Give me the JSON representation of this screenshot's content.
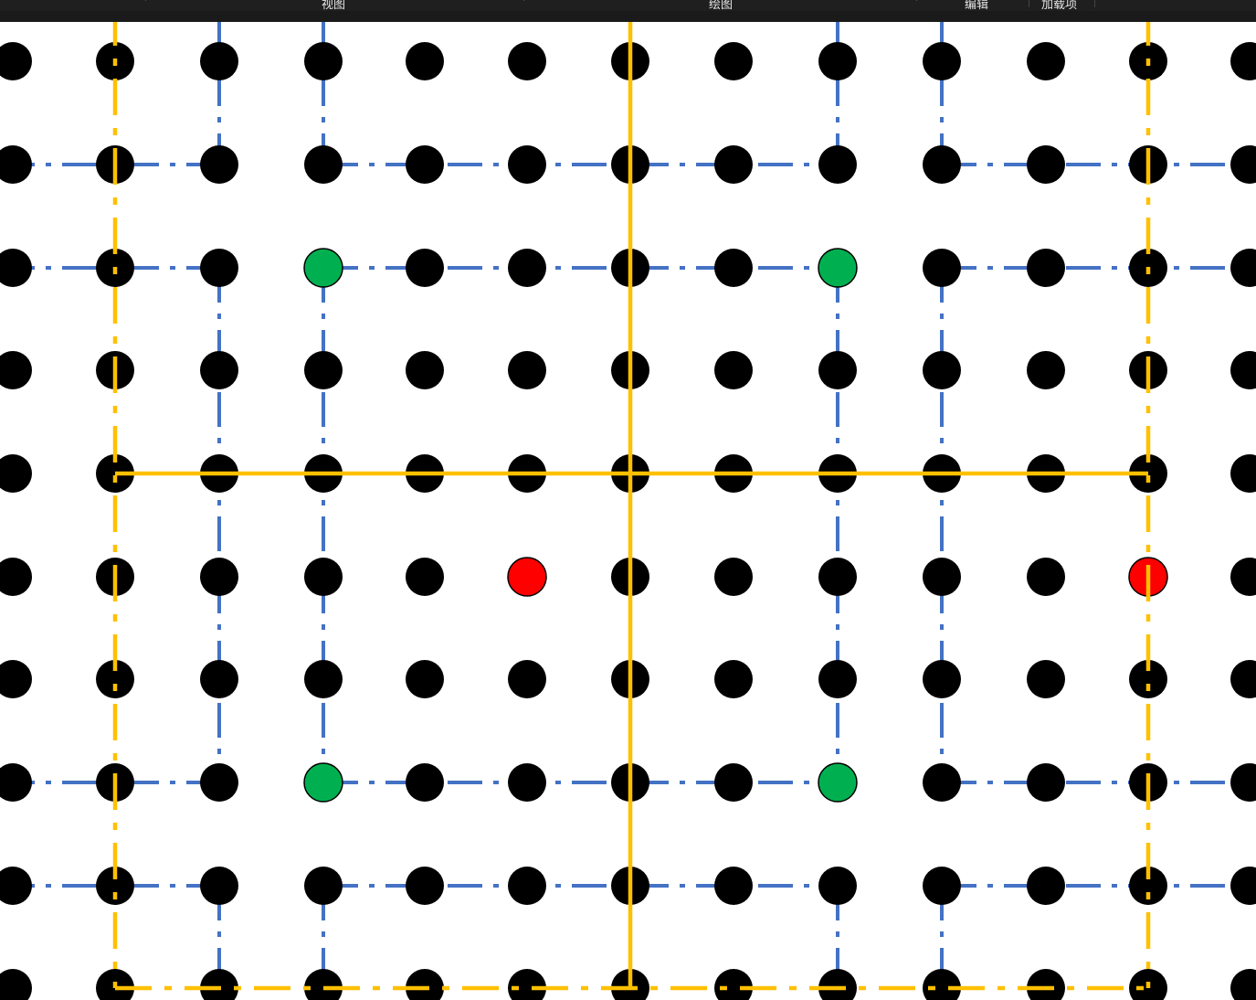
{
  "toolbar": {
    "labels": [
      "视图",
      "绘图",
      "编辑",
      "加载项"
    ]
  },
  "colors": {
    "background": "#ffffff",
    "dot": "#000000",
    "green_dot": "#00b050",
    "red_dot": "#ff0000",
    "blue_dash": "#4472c4",
    "orange_line": "#ffc000",
    "toolbar_bg": "#1f1f1f"
  },
  "grid": {
    "columns": 13,
    "rows": 10
  },
  "special_dots": {
    "green": [
      [
        3,
        2
      ],
      [
        8,
        2
      ],
      [
        3,
        7
      ],
      [
        8,
        7
      ]
    ],
    "red": [
      [
        5,
        5
      ],
      [
        11,
        5
      ]
    ]
  },
  "blue_dash_lines": {
    "horizontal": [
      {
        "row": 1,
        "from": 0,
        "to": 2
      },
      {
        "row": 1,
        "from": 3,
        "to": 8
      },
      {
        "row": 1,
        "from": 9,
        "to": 12
      },
      {
        "row": 2,
        "from": 0,
        "to": 2
      },
      {
        "row": 2,
        "from": 3,
        "to": 8
      },
      {
        "row": 2,
        "from": 9,
        "to": 12
      },
      {
        "row": 7,
        "from": 0,
        "to": 2
      },
      {
        "row": 7,
        "from": 3,
        "to": 8
      },
      {
        "row": 7,
        "from": 9,
        "to": 12
      },
      {
        "row": 8,
        "from": 0,
        "to": 2
      },
      {
        "row": 8,
        "from": 3,
        "to": 8
      },
      {
        "row": 8,
        "from": 9,
        "to": 12
      }
    ],
    "vertical": [
      {
        "col": 2,
        "from": -1,
        "to": 1
      },
      {
        "col": 3,
        "from": -1,
        "to": 1
      },
      {
        "col": 8,
        "from": -1,
        "to": 1
      },
      {
        "col": 9,
        "from": -1,
        "to": 1
      },
      {
        "col": 2,
        "from": 2,
        "to": 7
      },
      {
        "col": 3,
        "from": 2,
        "to": 7
      },
      {
        "col": 8,
        "from": 2,
        "to": 7
      },
      {
        "col": 9,
        "from": 2,
        "to": 7
      },
      {
        "col": 2,
        "from": 8,
        "to": 10
      },
      {
        "col": 3,
        "from": 8,
        "to": 10
      },
      {
        "col": 8,
        "from": 8,
        "to": 10
      },
      {
        "col": 9,
        "from": 8,
        "to": 10
      }
    ]
  },
  "orange_lines": {
    "horizontal": [
      {
        "row": 4,
        "from": 1,
        "to": 11,
        "style": "solid"
      },
      {
        "row": 9,
        "from": 1,
        "to": 11,
        "style": "dashdot"
      }
    ],
    "vertical": [
      {
        "col": 1,
        "from": -1,
        "to": 9,
        "style": "dashdot"
      },
      {
        "col": 6,
        "from": -1,
        "to": 9,
        "style": "solid"
      },
      {
        "col": 11,
        "from": -1,
        "to": 9,
        "style": "dashdot"
      }
    ]
  }
}
